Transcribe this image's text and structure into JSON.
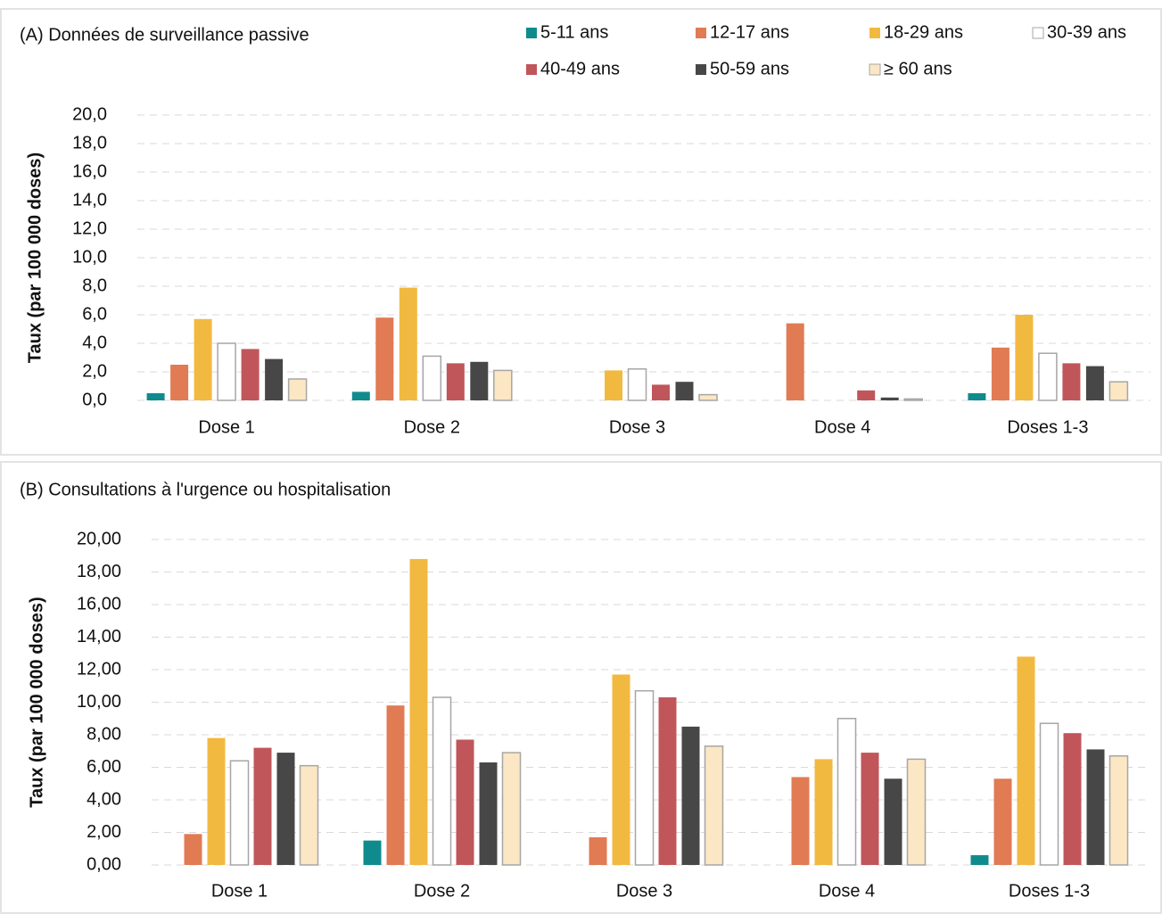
{
  "chart_data": [
    {
      "type": "bar",
      "title": "(A) Données de surveillance passive",
      "y_label": "Taux (par 100 000 doses)",
      "categories": [
        "Dose 1",
        "Dose 2",
        "Dose 3",
        "Dose 4",
        "Doses 1-3"
      ],
      "ylim": [
        0,
        20
      ],
      "yticks": [
        {
          "value": 0,
          "label": "0,0"
        },
        {
          "value": 2,
          "label": "2,0"
        },
        {
          "value": 4,
          "label": "4,0"
        },
        {
          "value": 6,
          "label": "6,0"
        },
        {
          "value": 8,
          "label": "8,0"
        },
        {
          "value": 10,
          "label": "10,0"
        },
        {
          "value": 12,
          "label": "12,0"
        },
        {
          "value": 14,
          "label": "14,0"
        },
        {
          "value": 16,
          "label": "16,0"
        },
        {
          "value": 18,
          "label": "18,0"
        },
        {
          "value": 20,
          "label": "20,0"
        }
      ],
      "grid": true,
      "legend": "top-right",
      "series": [
        {
          "name": "5-11 ans",
          "color": "#0f8b8d",
          "values": [
            0.5,
            0.6,
            null,
            null,
            0.5
          ]
        },
        {
          "name": "12-17 ans",
          "color": "#e07b54",
          "values": [
            2.5,
            5.8,
            null,
            5.4,
            3.7
          ]
        },
        {
          "name": "18-29 ans",
          "color": "#f2b940",
          "values": [
            5.7,
            7.9,
            2.1,
            null,
            6.0
          ]
        },
        {
          "name": "30-39 ans",
          "color": "#ffffff",
          "values": [
            4.0,
            3.1,
            2.2,
            null,
            3.3
          ]
        },
        {
          "name": "40-49 ans",
          "color": "#c0565a",
          "values": [
            3.6,
            2.6,
            1.1,
            0.7,
            2.6
          ]
        },
        {
          "name": "50-59 ans",
          "color": "#474747",
          "values": [
            2.9,
            2.7,
            1.3,
            0.2,
            2.4
          ]
        },
        {
          "name": "≥ 60 ans",
          "color": "#fbe7c3",
          "values": [
            1.5,
            2.1,
            0.4,
            0.1,
            1.3
          ]
        }
      ]
    },
    {
      "type": "bar",
      "title": "(B) Consultations à l'urgence ou hospitalisation",
      "y_label": "Taux (par 100 000 doses)",
      "categories": [
        "Dose 1",
        "Dose 2",
        "Dose 3",
        "Dose 4",
        "Doses 1-3"
      ],
      "ylim": [
        0,
        20
      ],
      "yticks": [
        {
          "value": 0,
          "label": "0,00"
        },
        {
          "value": 2,
          "label": "2,00"
        },
        {
          "value": 4,
          "label": "4,00"
        },
        {
          "value": 6,
          "label": "6,00"
        },
        {
          "value": 8,
          "label": "8,00"
        },
        {
          "value": 10,
          "label": "10,00"
        },
        {
          "value": 12,
          "label": "12,00"
        },
        {
          "value": 14,
          "label": "14,00"
        },
        {
          "value": 16,
          "label": "16,00"
        },
        {
          "value": 18,
          "label": "18,00"
        },
        {
          "value": 20,
          "label": "20,00"
        }
      ],
      "grid": true,
      "series": [
        {
          "color": "#0f8b8d",
          "values": [
            null,
            1.5,
            null,
            null,
            0.6
          ]
        },
        {
          "color": "#e07b54",
          "values": [
            1.9,
            9.8,
            1.7,
            5.4,
            5.3
          ]
        },
        {
          "color": "#f2b940",
          "values": [
            7.8,
            18.8,
            11.7,
            6.5,
            12.8
          ]
        },
        {
          "color": "#ffffff",
          "values": [
            6.4,
            10.3,
            10.7,
            9.0,
            8.7
          ]
        },
        {
          "color": "#c0565a",
          "values": [
            7.2,
            7.7,
            10.3,
            6.9,
            8.1
          ]
        },
        {
          "color": "#474747",
          "values": [
            6.9,
            6.3,
            8.5,
            5.3,
            7.1
          ]
        },
        {
          "color": "#fbe7c3",
          "values": [
            6.1,
            6.9,
            7.3,
            6.5,
            6.7
          ]
        }
      ]
    }
  ]
}
